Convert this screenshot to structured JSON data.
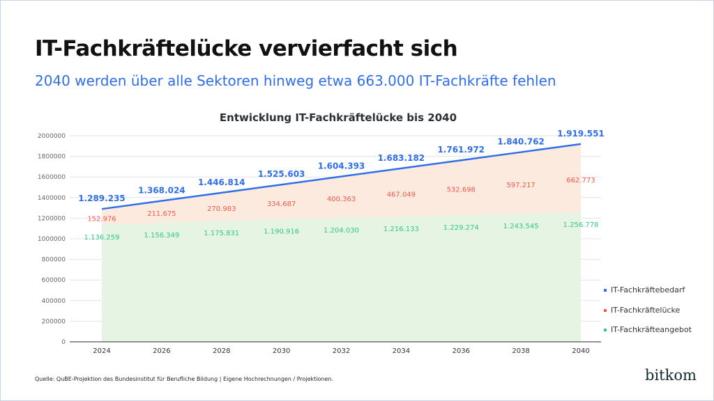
{
  "title": "IT-Fachkräftelücke vervierfacht sich",
  "subtitle": "2040 werden über alle Sektoren hinweg etwa 663.000 IT-Fachkräfte fehlen",
  "source": "Quelle: QuBE-Projektion des Bundesinstitut für Berufliche Bildung | Eigene Hochrechnungen / Projektionen.",
  "logo": "bitkom",
  "chart_data": {
    "type": "area",
    "title": "Entwicklung IT-Fachkräftelücke bis 2040",
    "xlabel": "",
    "ylabel": "",
    "ylim": [
      0,
      2000000
    ],
    "yticks": [
      "0",
      "200000",
      "400000",
      "600000",
      "800000",
      "1000000",
      "1200000",
      "1400000",
      "1600000",
      "1800000",
      "2000000"
    ],
    "grid": true,
    "legend": "right",
    "x": [
      "2024",
      "2026",
      "2028",
      "2030",
      "2032",
      "2034",
      "2036",
      "2038",
      "2040"
    ],
    "series": [
      {
        "name": "IT-Fachkräftebedarf",
        "color": "#2f6ee8",
        "values": [
          1289235,
          1368024,
          1446814,
          1525603,
          1604393,
          1683182,
          1761972,
          1840762,
          1919551
        ],
        "labels": [
          "1.289.235",
          "1.368.024",
          "1.446.814",
          "1.525.603",
          "1.604.393",
          "1.683.182",
          "1.761.972",
          "1.840.762",
          "1.919.551"
        ]
      },
      {
        "name": "IT-Fachkräftelücke",
        "color": "#f0574a",
        "values": [
          152976,
          211675,
          270983,
          334687,
          400363,
          467049,
          532698,
          597217,
          662773
        ],
        "labels": [
          "152.976",
          "211.675",
          "270.983",
          "334.687",
          "400.363",
          "467.049",
          "532.698",
          "597.217",
          "662.773"
        ]
      },
      {
        "name": "IT-Fachkräfteangebot",
        "color": "#2ec98a",
        "values": [
          1136259,
          1156349,
          1175831,
          1190916,
          1204030,
          1216133,
          1229274,
          1243545,
          1256778
        ],
        "labels": [
          "1.136.259",
          "1.156.349",
          "1.175.831",
          "1.190.916",
          "1.204.030",
          "1.216.133",
          "1.229.274",
          "1.243.545",
          "1.256.778"
        ]
      }
    ]
  }
}
